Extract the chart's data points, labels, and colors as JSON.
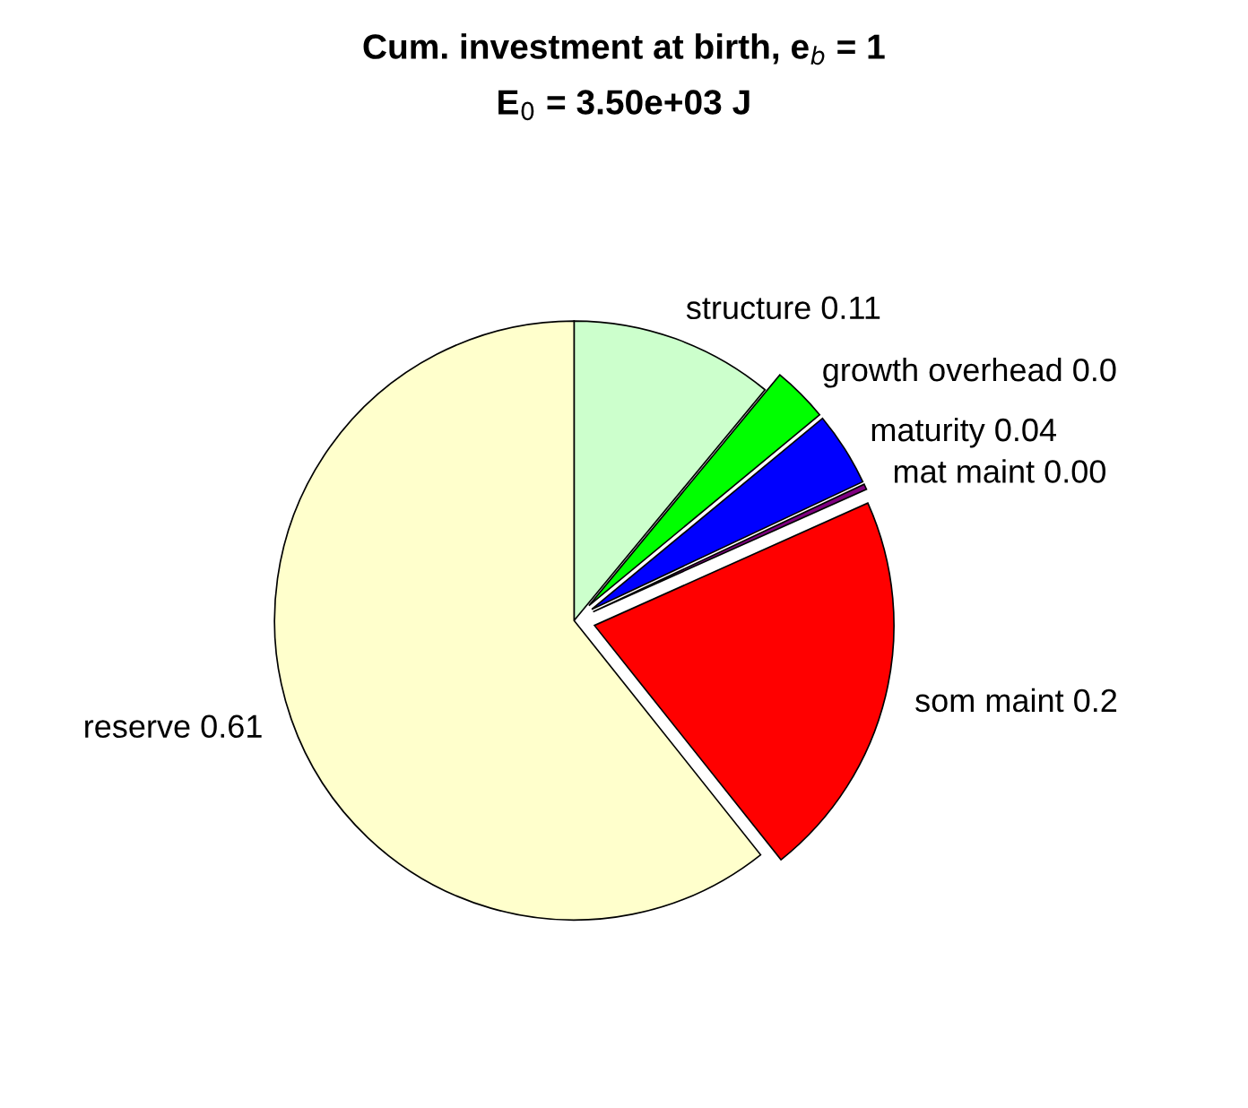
{
  "chart_data": {
    "type": "pie",
    "title": "Cum. investment at birth, e$_{b}$ = 1",
    "subtitle": "E$_{0}$ = 3.50e+03 J",
    "categories": [
      "structure 0.11",
      "growth overhead 0.0",
      "maturity 0.04",
      "mat maint 0.00",
      "som maint 0.2",
      "reserve 0.61"
    ],
    "values": [
      11,
      3,
      4,
      0.3,
      21,
      60.7
    ],
    "colors": [
      "#ccffcc",
      "#00ff00",
      "#0000ff",
      "#800080",
      "#ff0000",
      "#ffffcc"
    ]
  }
}
